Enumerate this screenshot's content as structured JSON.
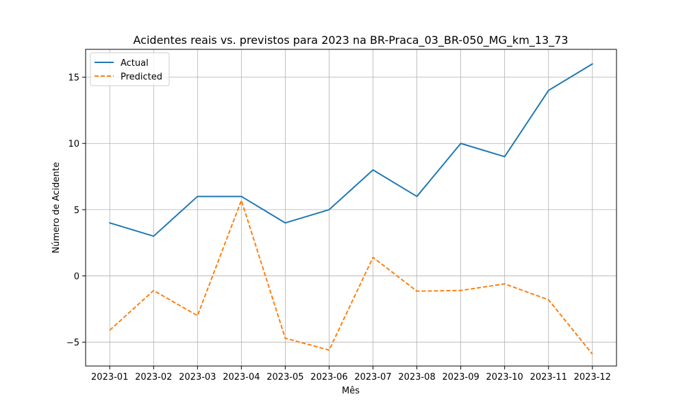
{
  "chart_data": {
    "type": "line",
    "title": "Acidentes reais vs. previstos para 2023 na BR-Praca_03_BR-050_MG_km_13_73",
    "xlabel": "Mês",
    "ylabel": "Número de Acidente",
    "categories": [
      "2023-01",
      "2023-02",
      "2023-03",
      "2023-04",
      "2023-05",
      "2023-06",
      "2023-07",
      "2023-08",
      "2023-09",
      "2023-10",
      "2023-11",
      "2023-12"
    ],
    "ylim": [
      -6.8,
      17.1
    ],
    "yticks": [
      -5,
      0,
      5,
      10,
      15
    ],
    "ytick_labels": [
      "−5",
      "0",
      "5",
      "10",
      "15"
    ],
    "grid": true,
    "legend_position": "upper-left",
    "series": [
      {
        "name": "Actual",
        "color": "#1f77b4",
        "style": "solid",
        "values": [
          4,
          3,
          6,
          6,
          4,
          5,
          8,
          6,
          10,
          9,
          14,
          16
        ]
      },
      {
        "name": "Predicted",
        "color": "#ff7f0e",
        "style": "dashed",
        "values": [
          -4.1,
          -1.1,
          -3.0,
          5.7,
          -4.7,
          -5.6,
          1.4,
          -1.15,
          -1.1,
          -0.6,
          -1.8,
          -5.9
        ]
      }
    ]
  }
}
